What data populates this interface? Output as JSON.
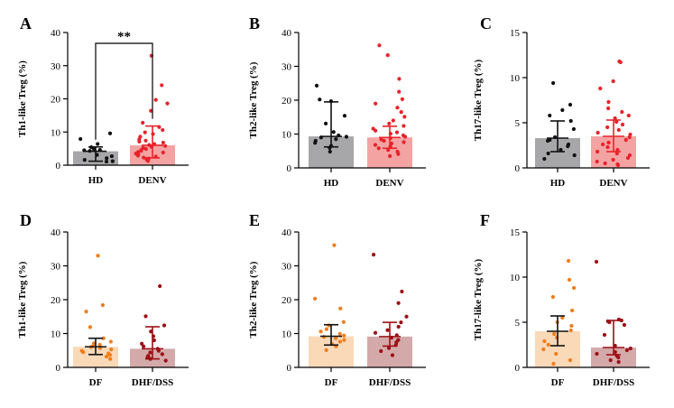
{
  "chart_data": [
    {
      "panel": "A",
      "type": "bar-dot",
      "ylabel": "Th1-like Treg (%)",
      "ylim": [
        0,
        40
      ],
      "yticks": [
        0,
        10,
        20,
        30,
        40
      ],
      "categories": [
        "HD",
        "DENV"
      ],
      "bar_colors": [
        "#a7a7aa",
        "#f4a3a3"
      ],
      "dot_colors": [
        "#111111",
        "#e8222a"
      ],
      "means": [
        4.2,
        6.0
      ],
      "sd_low": [
        1.2,
        2.2
      ],
      "sd_high": [
        5.5,
        11.8
      ],
      "points": [
        [
          9.6,
          7.9,
          6.4,
          5.4,
          4.8,
          4.6,
          4.5,
          4.3,
          3.1,
          2.7,
          2.1,
          1.6,
          1.2,
          1.1
        ],
        [
          33.0,
          24.1,
          19.7,
          18.6,
          16.4,
          12.8,
          11.5,
          10.6,
          9.9,
          9.4,
          8.6,
          7.8,
          7.4,
          7.1,
          6.8,
          6.4,
          6.1,
          5.8,
          5.5,
          5.2,
          4.9,
          4.6,
          4.3,
          4.0,
          3.8,
          3.5,
          3.2,
          2.9,
          2.6,
          2.3,
          2.0,
          1.7,
          1.3
        ]
      ],
      "significance": "**"
    },
    {
      "panel": "B",
      "type": "bar-dot",
      "ylabel": "Th2-like Treg (%)",
      "ylim": [
        0,
        40
      ],
      "yticks": [
        0,
        10,
        20,
        30,
        40
      ],
      "categories": [
        "HD",
        "DENV"
      ],
      "bar_colors": [
        "#a7a7aa",
        "#f4a3a3"
      ],
      "dot_colors": [
        "#111111",
        "#e8222a"
      ],
      "means": [
        9.3,
        9.0
      ],
      "sd_low": [
        6.2,
        5.8
      ],
      "sd_high": [
        19.5,
        12.3
      ],
      "points": [
        [
          24.3,
          20.2,
          19.7,
          15.4,
          13.1,
          10.6,
          9.6,
          9.2,
          9.0,
          8.5,
          8.0,
          7.4,
          6.5,
          5.9,
          4.8
        ],
        [
          36.2,
          33.3,
          26.3,
          22.5,
          20.3,
          19.0,
          17.8,
          16.5,
          15.1,
          14.0,
          13.1,
          12.4,
          11.6,
          11.0,
          10.5,
          10.1,
          9.6,
          9.2,
          8.8,
          8.4,
          8.0,
          7.6,
          7.2,
          6.8,
          6.3,
          5.8,
          5.3,
          4.8,
          4.1,
          3.5
        ]
      ]
    },
    {
      "panel": "C",
      "type": "bar-dot",
      "ylabel": "Th17-like Treg (%)",
      "ylim": [
        0,
        15
      ],
      "yticks": [
        0,
        5,
        10,
        15
      ],
      "categories": [
        "HD",
        "DENV"
      ],
      "bar_colors": [
        "#a7a7aa",
        "#f4a3a3"
      ],
      "dot_colors": [
        "#111111",
        "#e8222a"
      ],
      "means": [
        3.3,
        3.5
      ],
      "sd_low": [
        1.8,
        1.8
      ],
      "sd_high": [
        5.2,
        5.3
      ],
      "points": [
        [
          9.4,
          7.0,
          6.4,
          5.8,
          5.2,
          4.3,
          3.4,
          3.1,
          3.0,
          2.6,
          2.4,
          2.0,
          1.6,
          1.4,
          1.0
        ],
        [
          11.8,
          11.7,
          9.6,
          8.8,
          7.3,
          6.6,
          6.2,
          5.8,
          5.5,
          5.1,
          4.8,
          4.5,
          4.2,
          3.9,
          3.7,
          3.4,
          3.1,
          2.8,
          2.6,
          2.3,
          2.0,
          1.8,
          1.6,
          1.4,
          1.1,
          0.9,
          0.7,
          0.5,
          0.4,
          0.3
        ]
      ]
    },
    {
      "panel": "D",
      "type": "bar-dot",
      "ylabel": "Th1-like Treg (%)",
      "ylim": [
        0,
        40
      ],
      "yticks": [
        0,
        10,
        20,
        30,
        40
      ],
      "categories": [
        "DF",
        "DHF/DSS"
      ],
      "bar_colors": [
        "#f9d9b8",
        "#d4a9aa"
      ],
      "dot_colors": [
        "#f07d1b",
        "#9c0f16"
      ],
      "means": [
        6.1,
        5.5
      ],
      "sd_low": [
        3.8,
        2.5
      ],
      "sd_high": [
        8.6,
        12.0
      ],
      "points": [
        [
          33.0,
          18.4,
          16.5,
          11.9,
          8.6,
          7.6,
          7.1,
          6.7,
          6.3,
          6.0,
          5.7,
          5.3,
          4.9,
          4.5,
          4.1,
          3.7,
          3.2,
          2.5
        ],
        [
          24.0,
          15.1,
          12.4,
          10.6,
          9.2,
          8.0,
          7.0,
          6.2,
          5.5,
          4.9,
          4.4,
          3.9,
          3.4,
          2.9,
          2.5,
          2.0
        ]
      ]
    },
    {
      "panel": "E",
      "type": "bar-dot",
      "ylabel": "Th2-like Treg (%)",
      "ylim": [
        0,
        40
      ],
      "yticks": [
        0,
        10,
        20,
        30,
        40
      ],
      "categories": [
        "DF",
        "DHF/DSS"
      ],
      "bar_colors": [
        "#f9d9b8",
        "#d4a9aa"
      ],
      "dot_colors": [
        "#f07d1b",
        "#9c0f16"
      ],
      "means": [
        9.2,
        9.1
      ],
      "sd_low": [
        6.6,
        6.3
      ],
      "sd_high": [
        12.6,
        13.3
      ],
      "points": [
        [
          36.1,
          20.3,
          17.4,
          13.4,
          12.4,
          11.3,
          10.6,
          9.9,
          9.4,
          9.0,
          8.6,
          8.1,
          7.6,
          6.9,
          6.2,
          5.1
        ],
        [
          33.3,
          22.4,
          19.0,
          15.0,
          13.3,
          12.0,
          11.0,
          10.2,
          9.5,
          8.8,
          8.1,
          7.4,
          6.6,
          5.7,
          4.8,
          3.6
        ]
      ]
    },
    {
      "panel": "F",
      "type": "bar-dot",
      "ylabel": "Th17-like Treg (%)",
      "ylim": [
        0,
        15
      ],
      "yticks": [
        0,
        5,
        10,
        15
      ],
      "categories": [
        "DF",
        "DHF/DSS"
      ],
      "bar_colors": [
        "#f9d9b8",
        "#d4a9aa"
      ],
      "dot_colors": [
        "#f07d1b",
        "#9c0f16"
      ],
      "means": [
        4.0,
        2.2
      ],
      "sd_low": [
        2.4,
        1.4
      ],
      "sd_high": [
        5.7,
        5.2
      ],
      "points": [
        [
          11.8,
          9.7,
          8.8,
          7.8,
          6.3,
          5.5,
          5.0,
          4.6,
          4.1,
          3.7,
          3.3,
          2.9,
          2.5,
          2.0,
          1.5,
          0.8,
          0.4
        ],
        [
          11.7,
          5.3,
          5.2,
          5.1,
          5.0,
          4.7,
          3.6,
          2.4,
          2.1,
          1.9,
          1.7,
          1.5,
          1.3,
          1.1,
          0.8,
          0.6
        ]
      ]
    }
  ]
}
